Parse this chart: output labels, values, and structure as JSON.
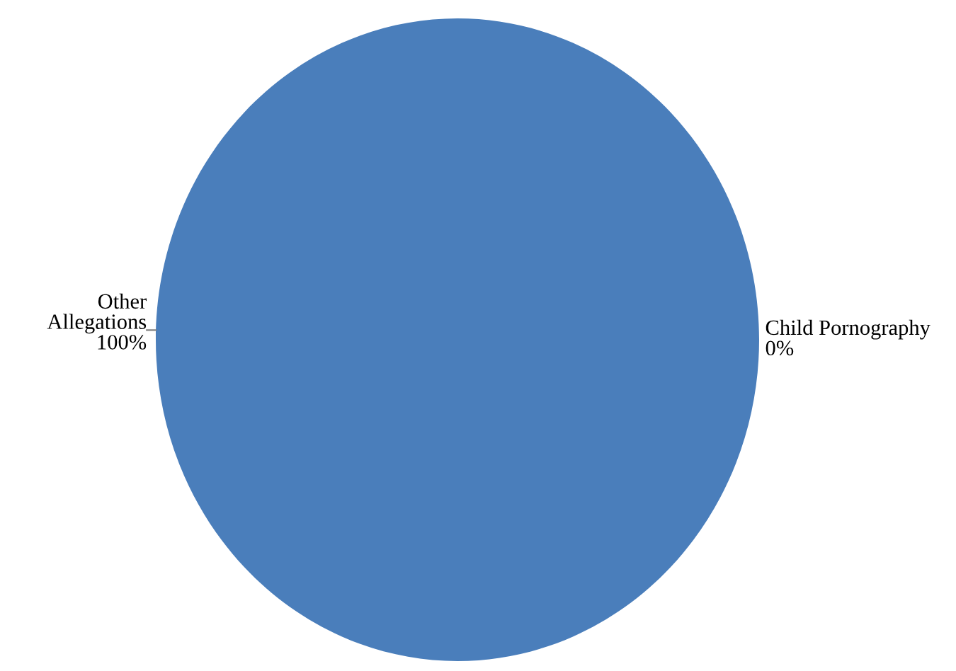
{
  "chart_data": {
    "type": "pie",
    "categories": [
      "Child Pornography",
      "Other Allegations"
    ],
    "values": [
      0,
      100
    ],
    "value_labels": [
      "0%",
      "100%"
    ],
    "colors": [
      "#c0504d",
      "#4a7ebb"
    ]
  }
}
